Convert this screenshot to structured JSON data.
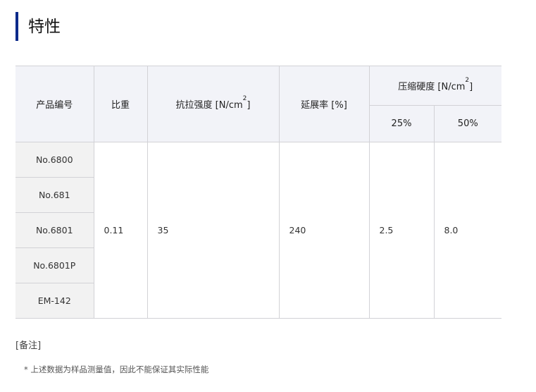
{
  "title": "特性",
  "table": {
    "headers": {
      "product_no": "产品编号",
      "specific_gravity": "比重",
      "tensile": "抗拉强度 [N/cm",
      "tensile_sup": "2",
      "tensile_end": "]",
      "elongation": "延展率 [%]",
      "compression": "压缩硬度 [N/cm",
      "compression_sup": "2",
      "compression_end": "]",
      "c25": "25%",
      "c50": "50%"
    },
    "products": [
      "No.6800",
      "No.681",
      "No.6801",
      "No.6801P",
      "EM-142"
    ],
    "values": {
      "specific_gravity": "0.11",
      "tensile": "35",
      "elongation": "240",
      "c25": "2.5",
      "c50": "8.0"
    }
  },
  "notes": {
    "heading": "[备注]",
    "text": "* 上述数据为样品测量值，因此不能保证其实际性能"
  },
  "colors": {
    "accent": "#0c2a8a",
    "header_bg": "#f2f3f8",
    "id_bg": "#f2f2f2"
  }
}
